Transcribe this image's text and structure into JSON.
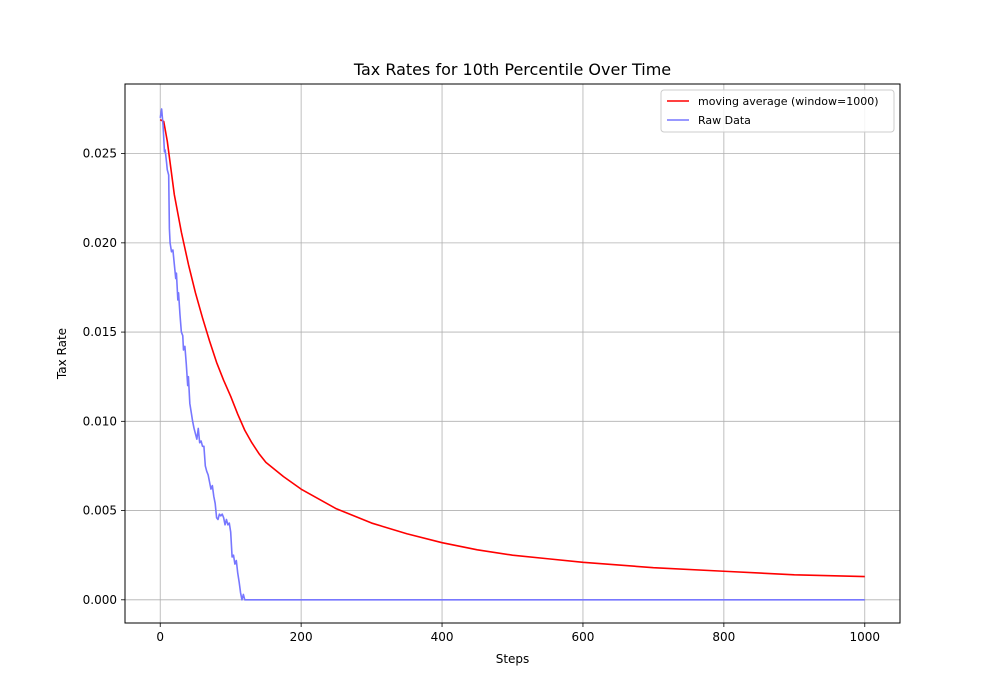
{
  "chart_data": {
    "type": "line",
    "title": "Tax Rates for 10th Percentile Over Time",
    "xlabel": "Steps",
    "ylabel": "Tax Rate",
    "xlim": [
      -50,
      1050
    ],
    "ylim": [
      -0.0013,
      0.0289
    ],
    "xticks": [
      "0",
      "200",
      "400",
      "600",
      "800",
      "1000"
    ],
    "yticks": [
      "0.000",
      "0.005",
      "0.010",
      "0.015",
      "0.020",
      "0.025"
    ],
    "grid": true,
    "legend_position": "top-right",
    "series": [
      {
        "name": "moving average (window=1000)",
        "color": "#ff0000",
        "x": [
          0,
          5,
          10,
          15,
          20,
          30,
          40,
          50,
          60,
          70,
          80,
          90,
          100,
          110,
          120,
          130,
          140,
          150,
          175,
          200,
          250,
          300,
          350,
          400,
          450,
          500,
          550,
          600,
          700,
          800,
          900,
          1000
        ],
        "y": [
          0.0269,
          0.0268,
          0.0257,
          0.0242,
          0.0227,
          0.0206,
          0.0188,
          0.0172,
          0.0158,
          0.0145,
          0.0133,
          0.0123,
          0.0114,
          0.0104,
          0.0095,
          0.0088,
          0.0082,
          0.0077,
          0.0069,
          0.0062,
          0.0051,
          0.0043,
          0.0037,
          0.0032,
          0.0028,
          0.0025,
          0.0023,
          0.0021,
          0.0018,
          0.0016,
          0.0014,
          0.0013
        ]
      },
      {
        "name": "Raw Data",
        "color": "#7777ff",
        "x": [
          0,
          2,
          4,
          6,
          7,
          9,
          10,
          12,
          13,
          14,
          16,
          18,
          20,
          22,
          23,
          25,
          26,
          28,
          30,
          32,
          33,
          35,
          37,
          39,
          40,
          42,
          44,
          46,
          48,
          50,
          52,
          54,
          56,
          58,
          60,
          62,
          64,
          66,
          68,
          70,
          72,
          74,
          76,
          78,
          80,
          82,
          84,
          86,
          88,
          90,
          92,
          94,
          96,
          98,
          100,
          102,
          104,
          106,
          108,
          110,
          112,
          114,
          116,
          118,
          120,
          1000
        ],
        "y": [
          0.027,
          0.0275,
          0.0266,
          0.0251,
          0.0252,
          0.0245,
          0.0241,
          0.0238,
          0.0208,
          0.02,
          0.0195,
          0.0196,
          0.0188,
          0.018,
          0.0183,
          0.0168,
          0.0172,
          0.016,
          0.015,
          0.0148,
          0.014,
          0.0142,
          0.0132,
          0.012,
          0.0125,
          0.011,
          0.0105,
          0.01,
          0.0096,
          0.0093,
          0.009,
          0.0096,
          0.0088,
          0.0089,
          0.0086,
          0.0086,
          0.0075,
          0.0072,
          0.007,
          0.0066,
          0.0062,
          0.0064,
          0.0058,
          0.0054,
          0.0046,
          0.0045,
          0.0048,
          0.0047,
          0.0048,
          0.0046,
          0.0042,
          0.0045,
          0.0042,
          0.0043,
          0.0038,
          0.0024,
          0.0025,
          0.002,
          0.0022,
          0.0015,
          0.001,
          0.0004,
          0.0,
          0.0003,
          0.0,
          0.0
        ]
      }
    ]
  }
}
